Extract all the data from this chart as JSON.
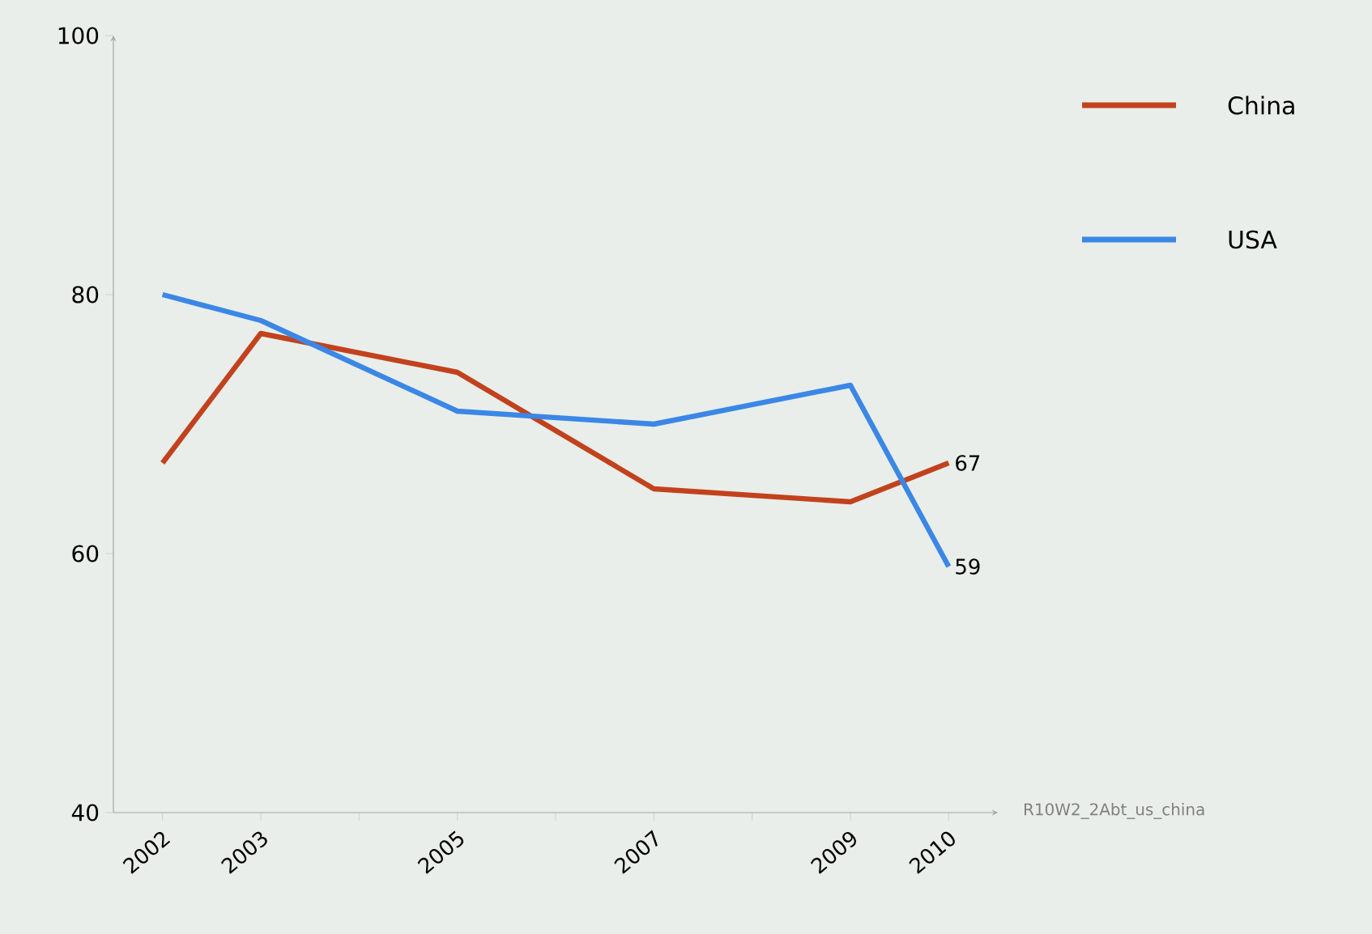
{
  "chart_data": {
    "type": "line",
    "x": [
      2002,
      2003,
      2005,
      2007,
      2009,
      2010
    ],
    "series": [
      {
        "name": "China",
        "color": "#c2421d",
        "values": [
          67,
          77,
          74,
          65,
          64,
          67
        ],
        "value_labels": [
          null,
          null,
          null,
          null,
          null,
          "67"
        ]
      },
      {
        "name": "USA",
        "color": "#3b87e6",
        "values": [
          80,
          78,
          71,
          70,
          73,
          59
        ],
        "value_labels": [
          null,
          null,
          null,
          null,
          null,
          "59"
        ]
      }
    ],
    "xlim": [
      2001.5,
      2010.5
    ],
    "xticks": [
      2002,
      2003,
      {
        "value": 2004,
        "label": null
      },
      2005,
      {
        "value": 2006,
        "label": null
      },
      2007,
      {
        "value": 2008,
        "label": null
      },
      2009,
      2010
    ],
    "ylim": [
      40,
      100
    ],
    "yticks": [
      40,
      60,
      80,
      100
    ],
    "grid": false,
    "legend": "top right",
    "marker": "none",
    "line_style": "solid",
    "annotations": [
      "R10W2_2Abt_us_china"
    ]
  }
}
